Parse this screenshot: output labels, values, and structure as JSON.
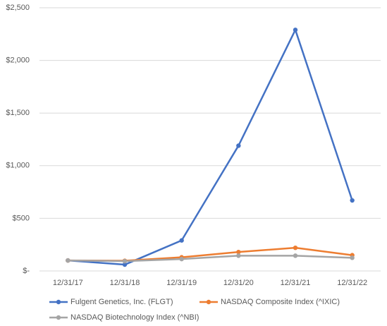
{
  "chart_data": {
    "type": "line",
    "categories": [
      "12/31/17",
      "12/31/18",
      "12/31/19",
      "12/31/20",
      "12/31/21",
      "12/31/22"
    ],
    "series": [
      {
        "name": "Fulgent Genetics, Inc. (FLGT)",
        "color": "#4472c4",
        "values": [
          100,
          60,
          290,
          1190,
          2290,
          670
        ]
      },
      {
        "name": "NASDAQ Composite Index (^IXIC)",
        "color": "#ed7d31",
        "values": [
          100,
          97,
          130,
          180,
          220,
          150
        ]
      },
      {
        "name": "NASDAQ Biotechnology Index (^NBI)",
        "color": "#a5a5a5",
        "values": [
          100,
          93,
          113,
          145,
          145,
          125
        ]
      }
    ],
    "ylim": [
      0,
      2500
    ],
    "yticks": [
      {
        "value": 0,
        "label": "$-"
      },
      {
        "value": 500,
        "label": "$500"
      },
      {
        "value": 1000,
        "label": "$1,000"
      },
      {
        "value": 1500,
        "label": "$1,500"
      },
      {
        "value": 2000,
        "label": "$2,000"
      },
      {
        "value": 2500,
        "label": "$2,500"
      }
    ],
    "grid": true
  }
}
